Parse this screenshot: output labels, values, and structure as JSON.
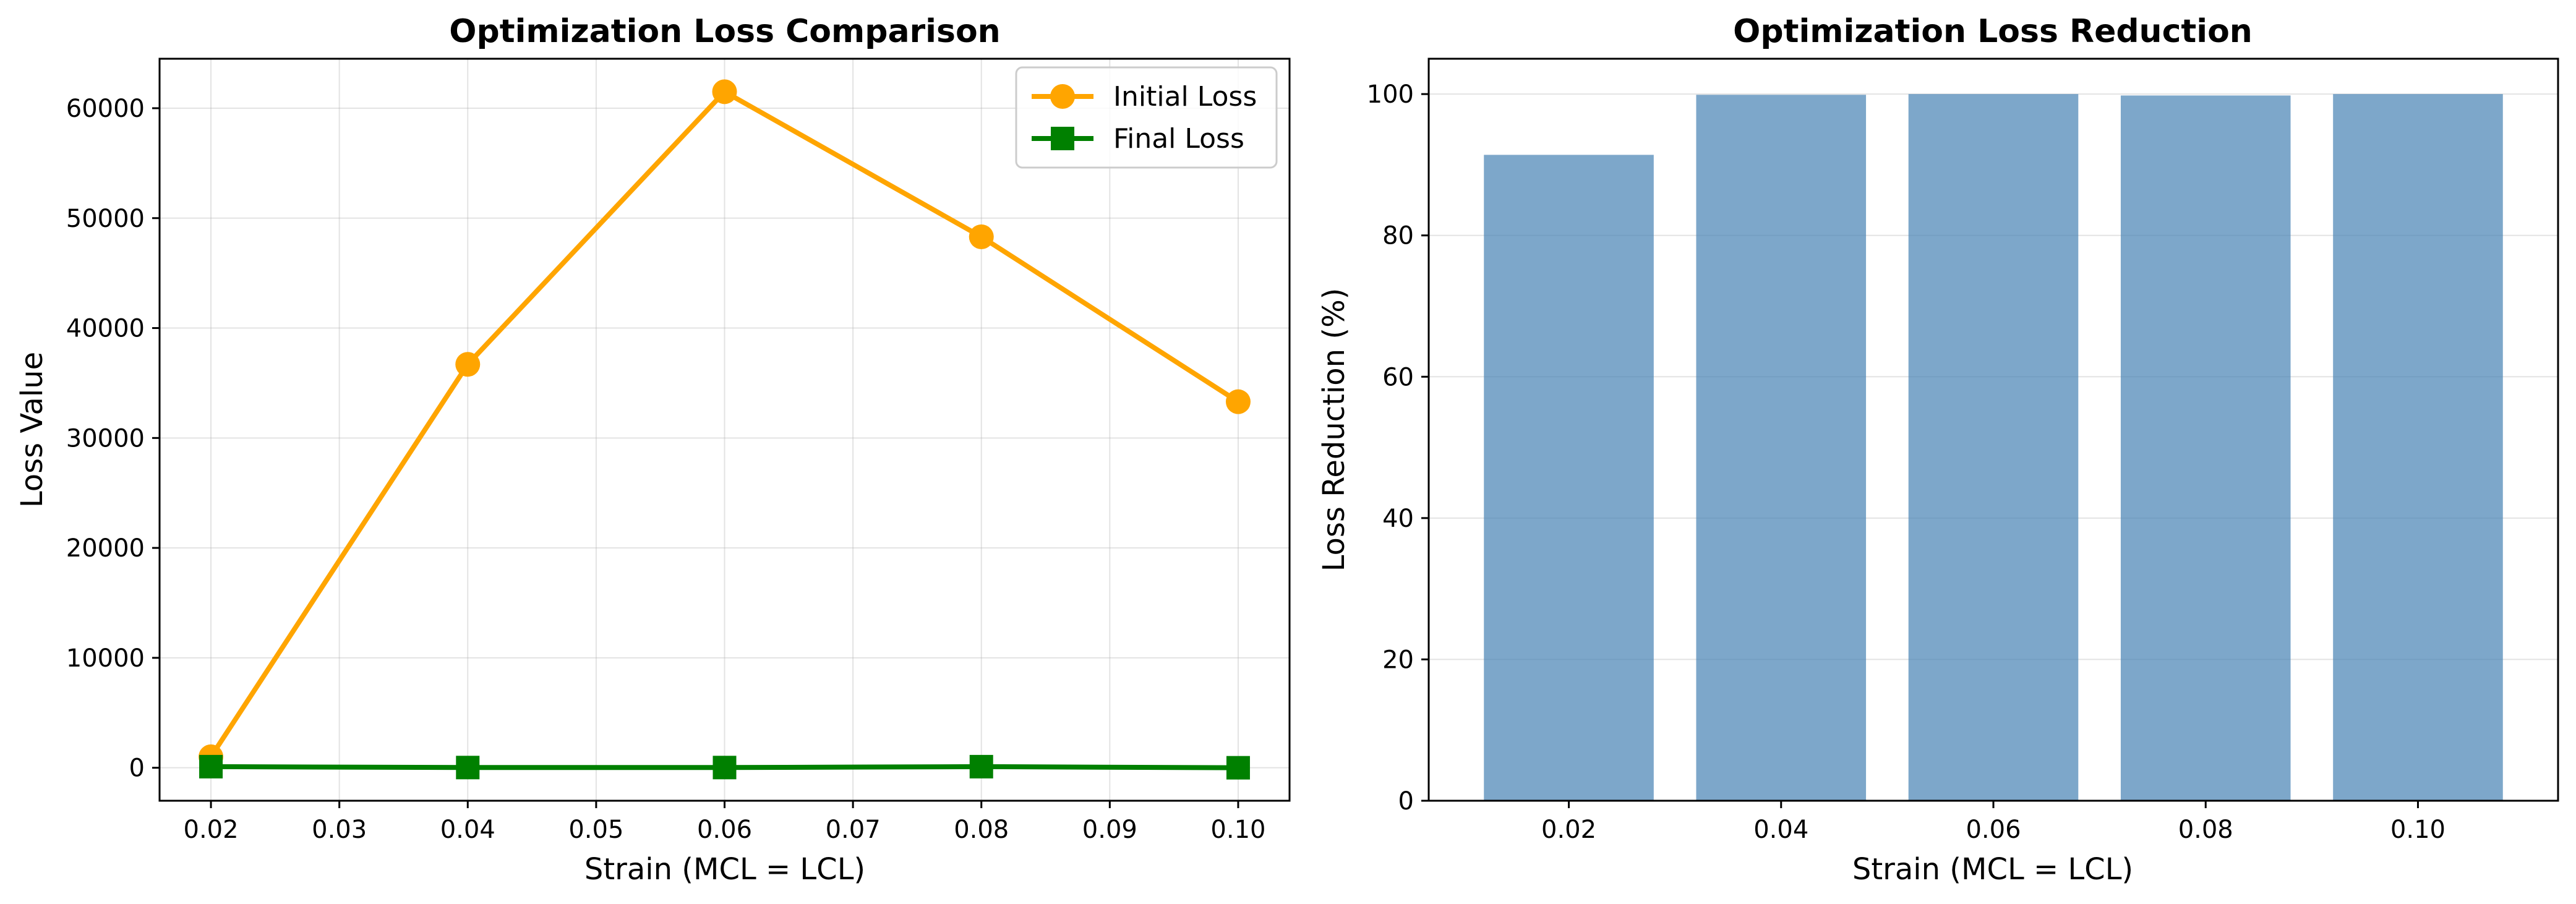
{
  "chart_data": [
    {
      "type": "line",
      "title": "Optimization Loss Comparison",
      "xlabel": "Strain (MCL = LCL)",
      "ylabel": "Loss Value",
      "x": [
        0.02,
        0.04,
        0.06,
        0.08,
        0.1
      ],
      "xlim": [
        0.016,
        0.104
      ],
      "ylim": [
        -3000,
        64500
      ],
      "x_ticks": [
        0.02,
        0.03,
        0.04,
        0.05,
        0.06,
        0.07,
        0.08,
        0.09,
        0.1
      ],
      "x_tick_labels": [
        "0.02",
        "0.03",
        "0.04",
        "0.05",
        "0.06",
        "0.07",
        "0.08",
        "0.09",
        "0.10"
      ],
      "y_ticks": [
        0,
        10000,
        20000,
        30000,
        40000,
        50000,
        60000
      ],
      "y_tick_labels": [
        "0",
        "10000",
        "20000",
        "30000",
        "40000",
        "50000",
        "60000"
      ],
      "grid": true,
      "legend_position": "top-right",
      "series": [
        {
          "name": "Initial Loss",
          "color": "#ffa500",
          "marker": "circle",
          "values": [
            1000,
            36700,
            61500,
            48300,
            33300
          ]
        },
        {
          "name": "Final Loss",
          "color": "#008000",
          "marker": "square",
          "values": [
            100,
            20,
            20,
            100,
            0
          ]
        }
      ]
    },
    {
      "type": "bar",
      "title": "Optimization Loss Reduction",
      "xlabel": "Strain (MCL = LCL)",
      "ylabel": "Loss Reduction (%)",
      "categories": [
        "0.02",
        "0.04",
        "0.06",
        "0.08",
        "0.10"
      ],
      "values": [
        91.4,
        99.9,
        100.0,
        99.8,
        100.0
      ],
      "ylim": [
        0,
        105
      ],
      "y_ticks": [
        0,
        20,
        40,
        60,
        80,
        100
      ],
      "y_tick_labels": [
        "0",
        "20",
        "40",
        "60",
        "80",
        "100"
      ],
      "grid": true,
      "grid_axis": "y",
      "bar_color": "#4682b4",
      "bar_opacity": 0.7
    }
  ]
}
